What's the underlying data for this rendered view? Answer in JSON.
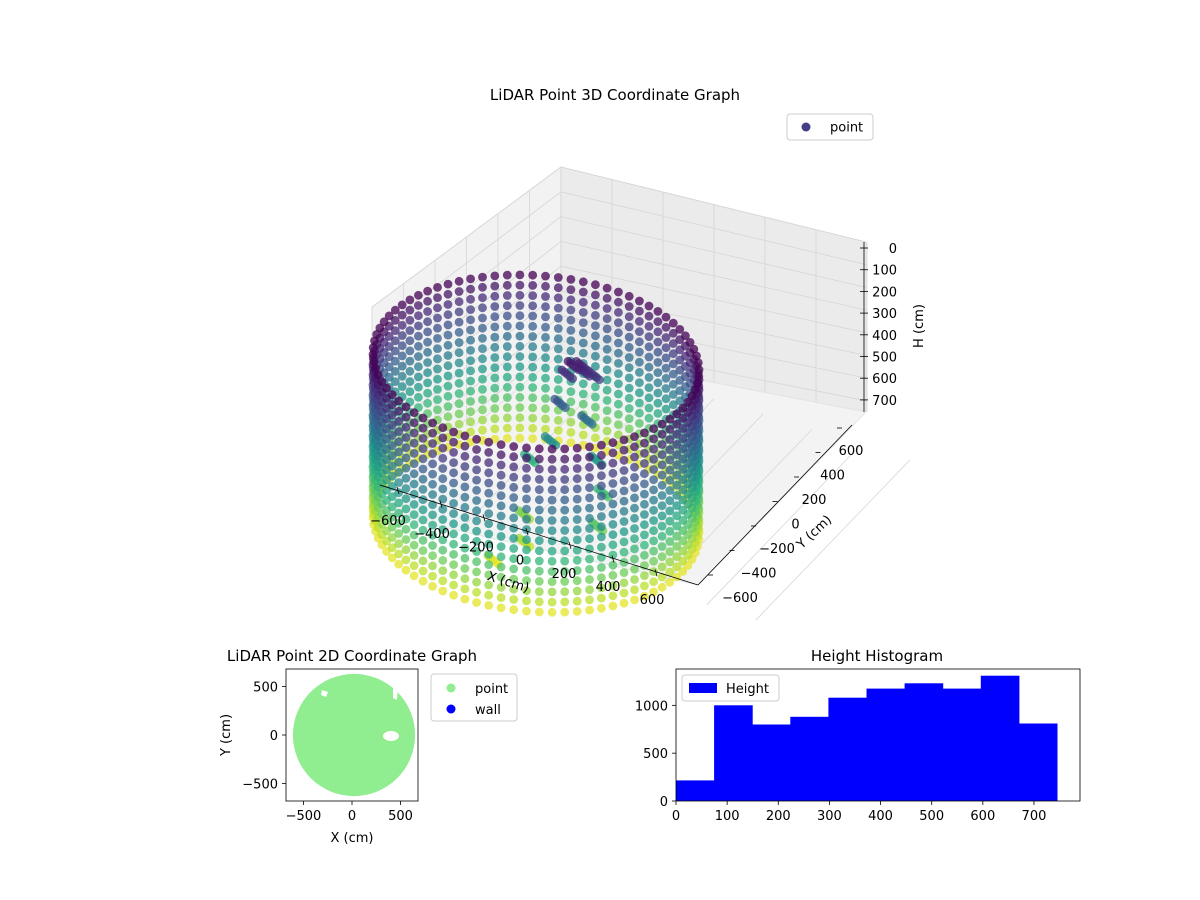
{
  "chart_data": [
    {
      "id": "lidar-3d",
      "type": "scatter",
      "title": "LiDAR Point 3D Coordinate Graph",
      "xlabel": "X (cm)",
      "ylabel": "Y (cm)",
      "zlabel": "H (cm)",
      "xlim": [
        -650,
        650
      ],
      "ylim": [
        -650,
        650
      ],
      "zlim": [
        750,
        0
      ],
      "x_ticks": [
        "−600",
        "−400",
        "−200",
        "0",
        "200",
        "400",
        "600"
      ],
      "y_ticks": [
        "−600",
        "−400",
        "−200",
        "0",
        "200",
        "400",
        "600"
      ],
      "z_ticks": [
        "0",
        "100",
        "200",
        "300",
        "400",
        "500",
        "600",
        "700"
      ],
      "legend": [
        {
          "label": "point",
          "color": "#433e85"
        }
      ],
      "legend_position": "top-right",
      "grid": true,
      "colormap": "viridis",
      "series": [
        {
          "name": "point",
          "wall_radius": 600,
          "wall_heights": [
            0,
            100,
            200,
            300,
            400,
            500,
            600,
            700
          ],
          "interior_points": [
            {
              "x": 80,
              "y": 150,
              "h": 50
            },
            {
              "x": 100,
              "y": 180,
              "h": 60
            },
            {
              "x": 120,
              "y": 160,
              "h": 70
            },
            {
              "x": 60,
              "y": 140,
              "h": 90
            },
            {
              "x": 140,
              "y": 200,
              "h": 100
            },
            {
              "x": 50,
              "y": 100,
              "h": 200
            },
            {
              "x": 150,
              "y": 120,
              "h": 250
            },
            {
              "x": 30,
              "y": 60,
              "h": 350
            },
            {
              "x": 200,
              "y": 100,
              "h": 400
            },
            {
              "x": -50,
              "y": 50,
              "h": 450
            },
            {
              "x": 0,
              "y": -100,
              "h": 600
            },
            {
              "x": 50,
              "y": -200,
              "h": 650
            },
            {
              "x": -30,
              "y": -300,
              "h": 700
            },
            {
              "x": 300,
              "y": -100,
              "h": 550
            },
            {
              "x": 250,
              "y": 50,
              "h": 500
            }
          ]
        }
      ]
    },
    {
      "id": "lidar-2d",
      "type": "scatter",
      "title": "LiDAR Point 2D Coordinate Graph",
      "xlabel": "X (cm)",
      "ylabel": "Y (cm)",
      "xlim": [
        -680,
        680
      ],
      "ylim": [
        -680,
        680
      ],
      "x_ticks": [
        -500,
        0,
        500
      ],
      "y_ticks": [
        -500,
        0,
        500
      ],
      "legend": [
        {
          "label": "point",
          "color": "#90ee90"
        },
        {
          "label": "wall",
          "color": "#0000ff"
        }
      ],
      "legend_position": "outside-right",
      "series": [
        {
          "name": "point",
          "shape": "filled disc",
          "radius": 630,
          "color": "#90ee90"
        },
        {
          "name": "wall",
          "color": "#0000ff"
        }
      ]
    },
    {
      "id": "height-hist",
      "type": "bar",
      "title": "Height Histogram",
      "xlim": [
        0,
        790
      ],
      "ylim": [
        0,
        1380
      ],
      "x_ticks": [
        0,
        100,
        200,
        300,
        400,
        500,
        600,
        700
      ],
      "y_ticks": [
        0,
        500,
        1000
      ],
      "legend": [
        {
          "label": "Height",
          "color": "#0000ff"
        }
      ],
      "legend_position": "top-left",
      "bin_edges": [
        0,
        74.5,
        149,
        223.5,
        298,
        372.5,
        447,
        521.5,
        596,
        670.5,
        745
      ],
      "values": [
        215,
        1000,
        800,
        880,
        1080,
        1175,
        1230,
        1175,
        1310,
        810
      ],
      "color": "#0000ff"
    }
  ]
}
